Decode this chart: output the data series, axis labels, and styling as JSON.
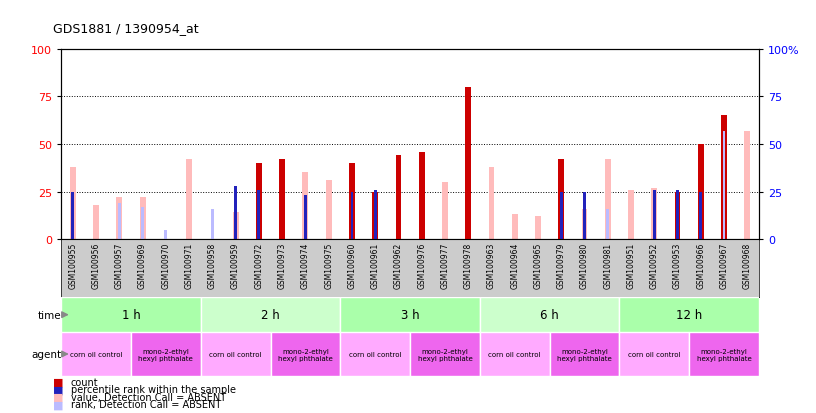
{
  "title": "GDS1881 / 1390954_at",
  "samples": [
    "GSM100955",
    "GSM100956",
    "GSM100957",
    "GSM100969",
    "GSM100970",
    "GSM100971",
    "GSM100958",
    "GSM100959",
    "GSM100972",
    "GSM100973",
    "GSM100974",
    "GSM100975",
    "GSM100960",
    "GSM100961",
    "GSM100962",
    "GSM100976",
    "GSM100977",
    "GSM100978",
    "GSM100963",
    "GSM100964",
    "GSM100965",
    "GSM100979",
    "GSM100980",
    "GSM100981",
    "GSM100951",
    "GSM100952",
    "GSM100953",
    "GSM100966",
    "GSM100967",
    "GSM100968"
  ],
  "count": [
    0,
    0,
    0,
    0,
    0,
    0,
    0,
    0,
    40,
    42,
    0,
    0,
    40,
    25,
    44,
    46,
    0,
    80,
    0,
    0,
    0,
    42,
    0,
    0,
    0,
    0,
    25,
    50,
    65,
    0
  ],
  "count_absent": [
    38,
    18,
    22,
    22,
    0,
    42,
    0,
    14,
    0,
    0,
    35,
    31,
    0,
    0,
    0,
    0,
    30,
    0,
    38,
    13,
    12,
    0,
    16,
    42,
    26,
    27,
    0,
    0,
    0,
    57
  ],
  "rank": [
    25,
    0,
    0,
    0,
    0,
    0,
    0,
    28,
    26,
    0,
    23,
    0,
    25,
    26,
    0,
    0,
    0,
    0,
    0,
    0,
    0,
    25,
    25,
    0,
    0,
    26,
    26,
    25,
    0,
    0
  ],
  "rank_absent": [
    0,
    0,
    19,
    17,
    5,
    0,
    16,
    0,
    0,
    0,
    0,
    0,
    0,
    0,
    0,
    0,
    0,
    0,
    0,
    0,
    0,
    0,
    0,
    16,
    0,
    0,
    0,
    0,
    57,
    0
  ],
  "time_groups": [
    {
      "label": "1 h",
      "start": 0,
      "end": 6
    },
    {
      "label": "2 h",
      "start": 6,
      "end": 12
    },
    {
      "label": "3 h",
      "start": 12,
      "end": 18
    },
    {
      "label": "6 h",
      "start": 18,
      "end": 24
    },
    {
      "label": "12 h",
      "start": 24,
      "end": 30
    }
  ],
  "agent_groups": [
    {
      "label": "corn oil control",
      "start": 0,
      "end": 3
    },
    {
      "label": "mono-2-ethyl\nhexyl phthalate",
      "start": 3,
      "end": 6
    },
    {
      "label": "corn oil control",
      "start": 6,
      "end": 9
    },
    {
      "label": "mono-2-ethyl\nhexyl phthalate",
      "start": 9,
      "end": 12
    },
    {
      "label": "corn oil control",
      "start": 12,
      "end": 15
    },
    {
      "label": "mono-2-ethyl\nhexyl phthalate",
      "start": 15,
      "end": 18
    },
    {
      "label": "corn oil control",
      "start": 18,
      "end": 21
    },
    {
      "label": "mono-2-ethyl\nhexyl phthalate",
      "start": 21,
      "end": 24
    },
    {
      "label": "corn oil control",
      "start": 24,
      "end": 27
    },
    {
      "label": "mono-2-ethyl\nhexyl phthalate",
      "start": 27,
      "end": 30
    }
  ],
  "color_count": "#cc0000",
  "color_rank": "#2222bb",
  "color_count_absent": "#ffbbbb",
  "color_rank_absent": "#bbbbff",
  "color_time": "#aaffaa",
  "color_time_alt": "#ccffcc",
  "color_agent_corn": "#ffaaff",
  "color_agent_mono": "#ee66ee",
  "color_label_bg": "#cccccc",
  "yticks": [
    0,
    25,
    50,
    75,
    100
  ],
  "bar_width": 0.25,
  "rank_bar_width": 0.12
}
